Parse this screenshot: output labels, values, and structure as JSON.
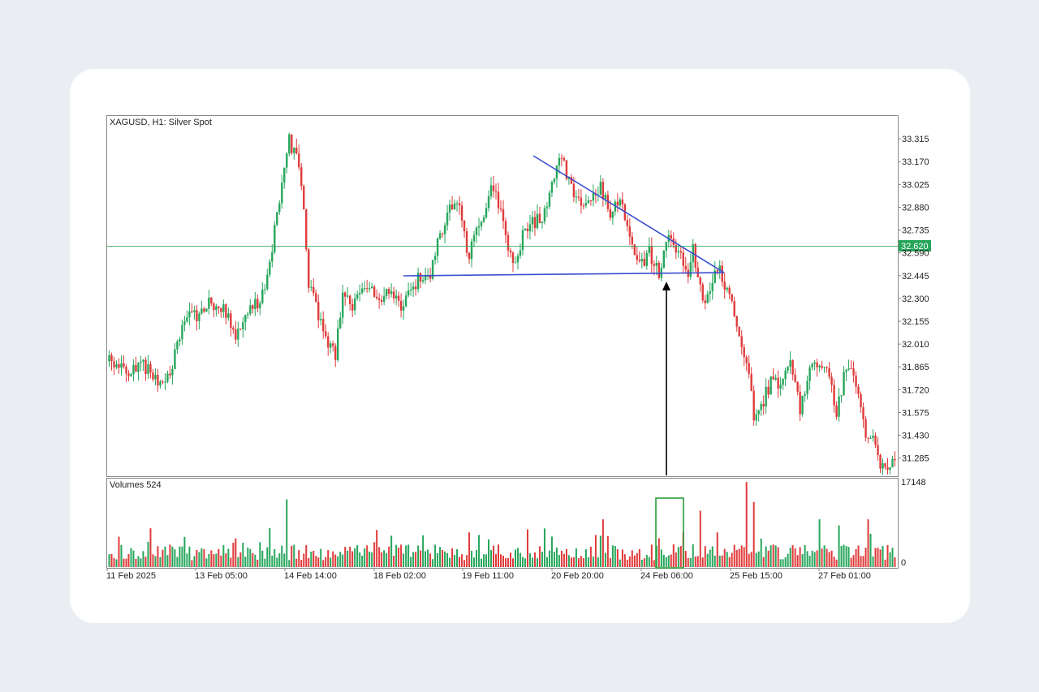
{
  "chart_data": [
    {
      "type": "candlestick",
      "title": "XAGUSD, H1:  Silver Spot",
      "y_axis_ticks": [
        "33.315",
        "33.170",
        "33.025",
        "32.880",
        "32.735",
        "32.590",
        "32.445",
        "32.300",
        "32.155",
        "32.010",
        "31.865",
        "31.720",
        "31.575",
        "31.430",
        "31.285"
      ],
      "ylim": [
        31.17,
        33.46
      ],
      "x_axis_ticks": [
        "11 Feb 2025",
        "13 Feb 05:00",
        "14 Feb 14:00",
        "18 Feb 02:00",
        "19 Feb 11:00",
        "20 Feb 20:00",
        "24 Feb 06:00",
        "25 Feb 15:00",
        "27 Feb 01:00"
      ],
      "current_price": "32.620",
      "up_color": "#26a65b",
      "down_color": "#e03a3a",
      "price_line_color": "#26a65b",
      "trendline_color": "#3a4fd0",
      "arrow_color": "#000000",
      "close_path": [
        [
          0,
          31.9
        ],
        [
          8,
          31.82
        ],
        [
          14,
          31.88
        ],
        [
          20,
          31.76
        ],
        [
          25,
          31.82
        ],
        [
          28,
          32.0
        ],
        [
          32,
          32.22
        ],
        [
          36,
          32.18
        ],
        [
          42,
          32.28
        ],
        [
          48,
          32.22
        ],
        [
          52,
          32.05
        ],
        [
          56,
          32.2
        ],
        [
          62,
          32.28
        ],
        [
          66,
          32.5
        ],
        [
          70,
          32.95
        ],
        [
          74,
          33.3
        ],
        [
          78,
          33.15
        ],
        [
          80,
          32.9
        ],
        [
          82,
          32.4
        ],
        [
          86,
          32.2
        ],
        [
          90,
          32.0
        ],
        [
          93,
          31.95
        ],
        [
          96,
          32.3
        ],
        [
          100,
          32.25
        ],
        [
          104,
          32.4
        ],
        [
          108,
          32.35
        ],
        [
          112,
          32.28
        ],
        [
          116,
          32.38
        ],
        [
          120,
          32.2
        ],
        [
          124,
          32.35
        ],
        [
          128,
          32.45
        ],
        [
          132,
          32.45
        ],
        [
          136,
          32.7
        ],
        [
          140,
          32.9
        ],
        [
          144,
          32.85
        ],
        [
          148,
          32.55
        ],
        [
          150,
          32.7
        ],
        [
          154,
          32.85
        ],
        [
          158,
          33.02
        ],
        [
          162,
          32.8
        ],
        [
          166,
          32.5
        ],
        [
          170,
          32.7
        ],
        [
          174,
          32.78
        ],
        [
          178,
          32.82
        ],
        [
          182,
          33.0
        ],
        [
          186,
          33.2
        ],
        [
          190,
          33.0
        ],
        [
          194,
          32.92
        ],
        [
          198,
          32.9
        ],
        [
          202,
          33.0
        ],
        [
          206,
          32.85
        ],
        [
          210,
          32.95
        ],
        [
          214,
          32.7
        ],
        [
          218,
          32.5
        ],
        [
          222,
          32.6
        ],
        [
          226,
          32.45
        ],
        [
          230,
          32.7
        ],
        [
          234,
          32.6
        ],
        [
          238,
          32.45
        ],
        [
          240,
          32.62
        ],
        [
          242,
          32.4
        ],
        [
          245,
          32.25
        ],
        [
          248,
          32.4
        ],
        [
          250,
          32.5
        ],
        [
          253,
          32.4
        ],
        [
          256,
          32.3
        ],
        [
          258,
          32.1
        ],
        [
          260,
          32.0
        ],
        [
          263,
          31.85
        ],
        [
          265,
          31.5
        ],
        [
          267,
          31.55
        ],
        [
          270,
          31.7
        ],
        [
          273,
          31.8
        ],
        [
          276,
          31.75
        ],
        [
          280,
          31.9
        ],
        [
          284,
          31.6
        ],
        [
          287,
          31.8
        ],
        [
          290,
          31.9
        ],
        [
          293,
          31.85
        ],
        [
          296,
          31.8
        ],
        [
          299,
          31.55
        ],
        [
          302,
          31.8
        ],
        [
          305,
          31.9
        ],
        [
          308,
          31.7
        ],
        [
          311,
          31.4
        ],
        [
          314,
          31.45
        ],
        [
          317,
          31.2
        ],
        [
          320,
          31.25
        ]
      ],
      "n_candles": 324,
      "volume_panel": {
        "label": "Volumes 524",
        "y_max_label": "17148",
        "y_min_label": "0",
        "max": 17148
      },
      "annotations": [
        "descending-triangle-resistance",
        "triangle-support",
        "breakout-arrow",
        "volume-spike-box"
      ]
    }
  ]
}
